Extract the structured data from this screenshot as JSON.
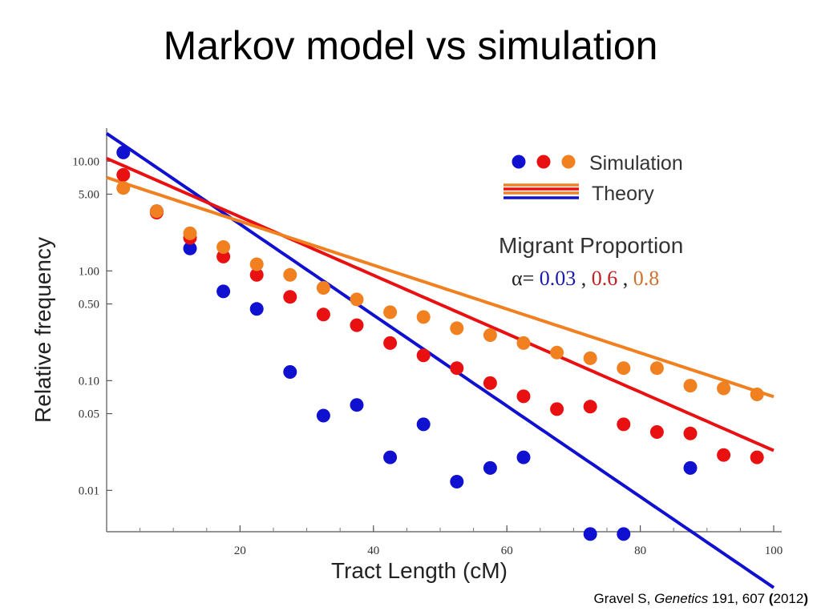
{
  "slide": {
    "title": "Markov model vs simulation"
  },
  "citation": {
    "author": "Gravel S, ",
    "journal": "Genetics",
    "volume_page": " 191, 607 ",
    "open_paren": "(",
    "year": "2012",
    "close_paren": ")"
  },
  "chart_data": {
    "type": "scatter",
    "title": "",
    "xlabel": "Tract Length (cM)",
    "ylabel": "Relative frequency",
    "xlim": [
      0,
      100
    ],
    "ylim": [
      0.0042,
      20
    ],
    "yscale": "log",
    "x_ticks": [
      20,
      40,
      60,
      80,
      100
    ],
    "x_tick_labels": [
      "20",
      "40",
      "60",
      "80",
      "100"
    ],
    "y_ticks": [
      10,
      5,
      1,
      0.5,
      0.1,
      0.05,
      0.01
    ],
    "y_tick_labels": [
      "10.00",
      "5.00",
      "1.00",
      "0.50",
      "0.10",
      "0.05",
      "0.01"
    ],
    "legend": {
      "placement": "top-right",
      "simulation_label": "Simulation",
      "theory_label": "Theory",
      "proportion_title": "Migrant Proportion",
      "alpha_prefix": "α=",
      "alpha_values": [
        "0.03",
        "0.6",
        "0.8"
      ],
      "separator": ", "
    },
    "series": [
      {
        "name": "α = 0.03",
        "color": "#1010d0",
        "theory": {
          "a": 17.9,
          "k": -0.0953,
          "x0": 0,
          "x1": 100
        },
        "simulation": {
          "x": [
            2.5,
            7.5,
            12.5,
            17.5,
            22.5,
            27.5,
            32.5,
            37.5,
            42.5,
            47.5,
            52.5,
            57.5,
            62.5,
            72.5,
            77.5,
            87.5
          ],
          "y": [
            12.0,
            3.5,
            1.6,
            0.65,
            0.45,
            0.12,
            0.048,
            0.06,
            0.02,
            0.04,
            0.012,
            0.016,
            0.02,
            0.004,
            0.004,
            0.016
          ]
        }
      },
      {
        "name": "α = 0.6",
        "color": "#e81010",
        "theory": {
          "a": 10.6,
          "k": -0.0613,
          "x0": 0,
          "x1": 100
        },
        "simulation": {
          "x": [
            2.5,
            7.5,
            12.5,
            17.5,
            22.5,
            27.5,
            32.5,
            37.5,
            42.5,
            47.5,
            52.5,
            57.5,
            62.5,
            67.5,
            72.5,
            77.5,
            82.5,
            87.5,
            92.5,
            97.5
          ],
          "y": [
            7.5,
            3.4,
            2.0,
            1.35,
            0.92,
            0.58,
            0.4,
            0.32,
            0.22,
            0.17,
            0.13,
            0.095,
            0.072,
            0.055,
            0.058,
            0.04,
            0.034,
            0.033,
            0.021,
            0.02
          ]
        }
      },
      {
        "name": "α = 0.8",
        "color": "#f08020",
        "theory": {
          "a": 7.1,
          "k": -0.046,
          "x0": 0,
          "x1": 100
        },
        "simulation": {
          "x": [
            2.5,
            7.5,
            12.5,
            17.5,
            22.5,
            27.5,
            32.5,
            37.5,
            42.5,
            47.5,
            52.5,
            57.5,
            62.5,
            67.5,
            72.5,
            77.5,
            82.5,
            87.5,
            92.5,
            97.5
          ],
          "y": [
            5.7,
            3.5,
            2.2,
            1.65,
            1.15,
            0.92,
            0.7,
            0.55,
            0.42,
            0.38,
            0.3,
            0.26,
            0.22,
            0.18,
            0.16,
            0.13,
            0.13,
            0.09,
            0.085,
            0.075
          ]
        }
      }
    ]
  }
}
